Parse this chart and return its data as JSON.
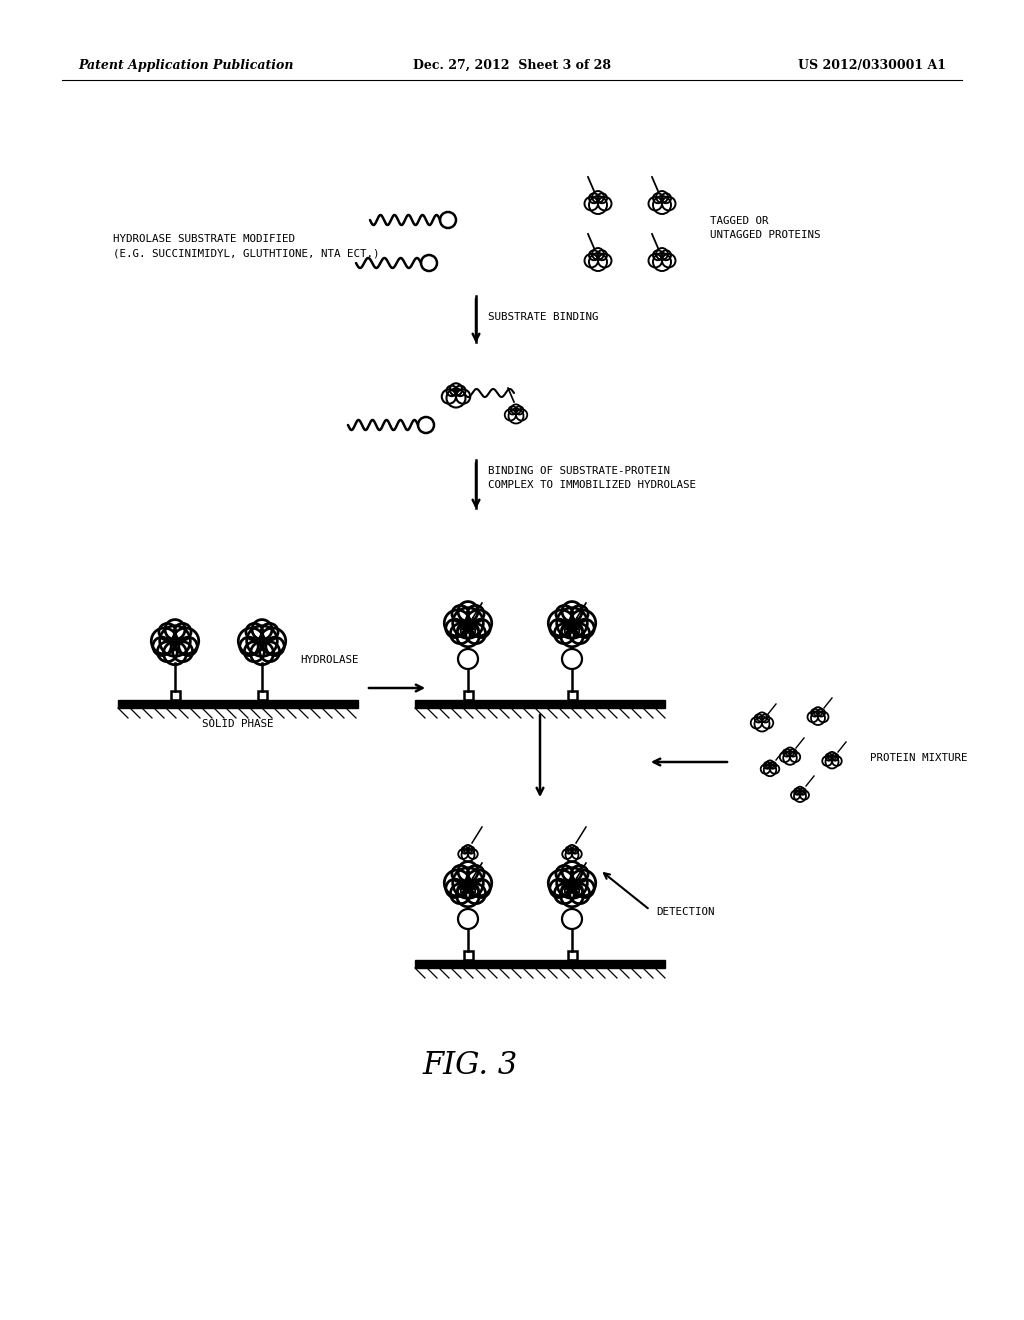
{
  "header_left": "Patent Application Publication",
  "header_mid": "Dec. 27, 2012  Sheet 3 of 28",
  "header_right": "US 2012/0330001 A1",
  "fig_label": "FIG. 3",
  "label_hydrolase_substrate": "HYDROLASE SUBSTRATE MODIFIED\n(E.G. SUCCINIMIDYL, GLUTHTIONE, NTA ECT.)",
  "label_tagged": "TAGGED OR\nUNTAGGED PROTEINS",
  "label_substrate_binding": "SUBSTRATE BINDING",
  "label_binding_complex": "BINDING OF SUBSTRATE-PROTEIN\nCOMPLEX TO IMMOBILIZED HYDROLASE",
  "label_hydrolase": "HYDROLASE",
  "label_solid_phase": "SOLID PHASE",
  "label_protein_mixture": "PROTEIN MIXTURE",
  "label_detection": "DETECTION",
  "bg_color": "#ffffff",
  "line_color": "#000000"
}
